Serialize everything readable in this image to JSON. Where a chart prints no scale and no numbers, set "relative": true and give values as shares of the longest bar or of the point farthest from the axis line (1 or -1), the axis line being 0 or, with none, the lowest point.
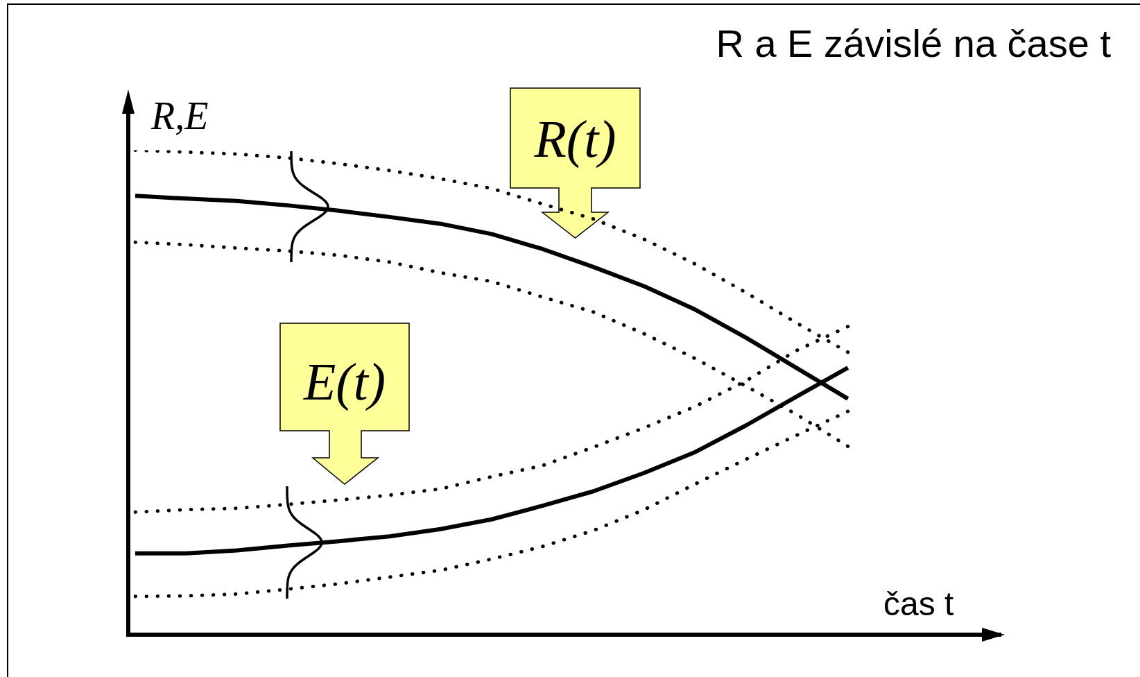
{
  "chart_data": {
    "type": "line",
    "title": "R a E závislé na čase t",
    "xlabel": "čas t",
    "ylabel": "R,E",
    "relative": true,
    "categories": [
      null,
      null,
      null,
      null,
      null,
      null,
      null,
      null,
      null,
      null,
      null,
      null,
      null,
      null,
      null,
      null,
      null,
      null
    ],
    "series": [
      {
        "name": "R(t)",
        "color": "#000000",
        "values": [
          0.906,
          0.9,
          0.895,
          0.886,
          0.875,
          0.862,
          0.848,
          0.827,
          0.796,
          0.759,
          0.719,
          0.671,
          0.613,
          0.55,
          0.487,
          null,
          null,
          null
        ]
      },
      {
        "color": "#000000",
        "line_style": "dotted",
        "values": [
          1,
          0.996,
          0.992,
          0.984,
          0.972,
          0.958,
          0.941,
          0.921,
          0.889,
          0.858,
          0.816,
          0.765,
          0.706,
          0.643,
          0.583,
          null,
          null,
          null
        ]
      },
      {
        "color": "#000000",
        "line_style": "dotted",
        "values": [
          0.81,
          0.805,
          0.798,
          0.792,
          0.783,
          0.769,
          0.747,
          0.729,
          0.697,
          0.666,
          0.621,
          0.57,
          0.513,
          0.454,
          0.389,
          null,
          null,
          null
        ]
      },
      {
        "name": "E(t)",
        "color": "#000000",
        "values": [
          0.168,
          0.168,
          0.174,
          0.184,
          0.193,
          0.203,
          0.218,
          0.238,
          0.266,
          0.296,
          0.334,
          0.377,
          0.432,
          0.492,
          0.551,
          null,
          null,
          null
        ]
      },
      {
        "color": "#000000",
        "line_style": "dotted",
        "values": [
          0.253,
          0.258,
          0.261,
          0.269,
          0.278,
          0.288,
          0.301,
          0.326,
          0.349,
          0.387,
          0.427,
          0.471,
          0.524,
          0.587,
          0.636,
          null,
          null,
          null
        ]
      },
      {
        "color": "#000000",
        "line_style": "dotted",
        "values": [
          0.079,
          0.08,
          0.084,
          0.094,
          0.105,
          0.119,
          0.133,
          0.156,
          0.182,
          0.215,
          0.258,
          0.311,
          0.362,
          0.412,
          0.461,
          null,
          null,
          null
        ]
      }
    ]
  }
}
